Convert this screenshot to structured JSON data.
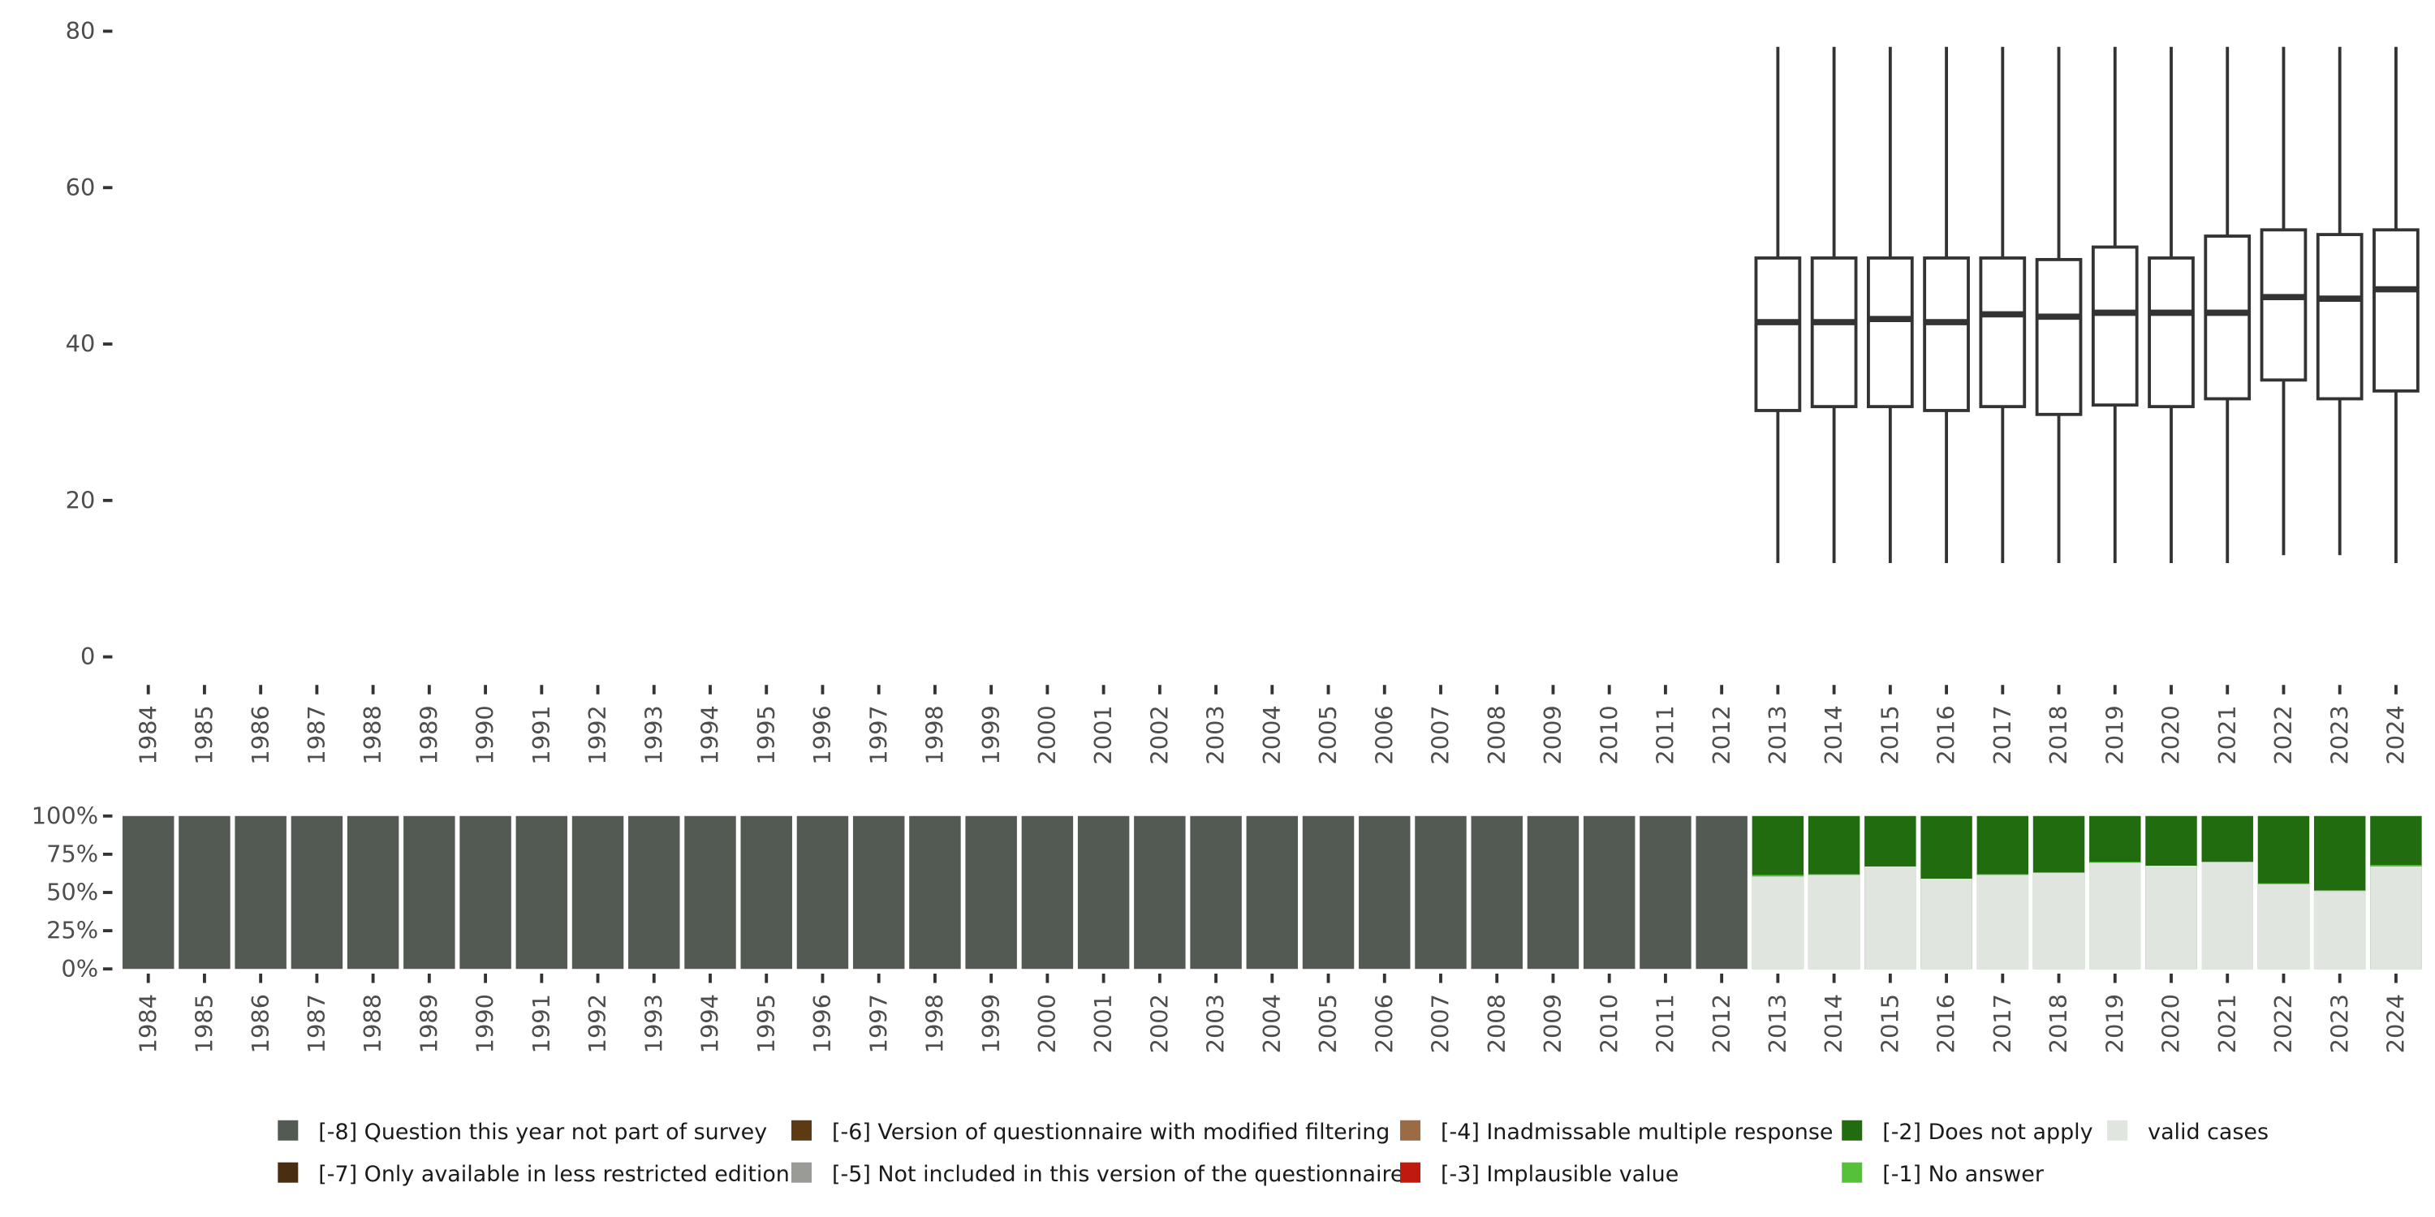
{
  "chart_data": [
    {
      "type": "boxplot",
      "categories": [
        "1984",
        "1985",
        "1986",
        "1987",
        "1988",
        "1989",
        "1990",
        "1991",
        "1992",
        "1993",
        "1994",
        "1995",
        "1996",
        "1997",
        "1998",
        "1999",
        "2000",
        "2001",
        "2002",
        "2003",
        "2004",
        "2005",
        "2006",
        "2007",
        "2008",
        "2009",
        "2010",
        "2011",
        "2012",
        "2013",
        "2014",
        "2015",
        "2016",
        "2017",
        "2018",
        "2019",
        "2020",
        "2021",
        "2022",
        "2023",
        "2024"
      ],
      "ylim": [
        0,
        80
      ],
      "yticks": [
        "0",
        "20",
        "40",
        "60",
        "80"
      ],
      "boxes": [
        {
          "year": "2013",
          "min": 12,
          "q1": 31.5,
          "median": 42.8,
          "q3": 51,
          "max": 78
        },
        {
          "year": "2014",
          "min": 12,
          "q1": 32,
          "median": 42.8,
          "q3": 51,
          "max": 78
        },
        {
          "year": "2015",
          "min": 12,
          "q1": 32,
          "median": 43.2,
          "q3": 51,
          "max": 78
        },
        {
          "year": "2016",
          "min": 12,
          "q1": 31.5,
          "median": 42.8,
          "q3": 51,
          "max": 78
        },
        {
          "year": "2017",
          "min": 12,
          "q1": 32,
          "median": 43.8,
          "q3": 51,
          "max": 78
        },
        {
          "year": "2018",
          "min": 12,
          "q1": 31,
          "median": 43.5,
          "q3": 50.8,
          "max": 78
        },
        {
          "year": "2019",
          "min": 12,
          "q1": 32.2,
          "median": 44,
          "q3": 52.4,
          "max": 78
        },
        {
          "year": "2020",
          "min": 12,
          "q1": 32,
          "median": 44,
          "q3": 51,
          "max": 78
        },
        {
          "year": "2021",
          "min": 12,
          "q1": 33,
          "median": 44,
          "q3": 53.8,
          "max": 78
        },
        {
          "year": "2022",
          "min": 13,
          "q1": 35.4,
          "median": 46,
          "q3": 54.6,
          "max": 78
        },
        {
          "year": "2023",
          "min": 13,
          "q1": 33,
          "median": 45.8,
          "q3": 54,
          "max": 78
        },
        {
          "year": "2024",
          "min": 12,
          "q1": 34,
          "median": 47,
          "q3": 54.6,
          "max": 78
        }
      ]
    },
    {
      "type": "stacked_bar",
      "categories": [
        "1984",
        "1985",
        "1986",
        "1987",
        "1988",
        "1989",
        "1990",
        "1991",
        "1992",
        "1993",
        "1994",
        "1995",
        "1996",
        "1997",
        "1998",
        "1999",
        "2000",
        "2001",
        "2002",
        "2003",
        "2004",
        "2005",
        "2006",
        "2007",
        "2008",
        "2009",
        "2010",
        "2011",
        "2012",
        "2013",
        "2014",
        "2015",
        "2016",
        "2017",
        "2018",
        "2019",
        "2020",
        "2021",
        "2022",
        "2023",
        "2024"
      ],
      "yticks": [
        "0%",
        "25%",
        "50%",
        "75%",
        "100%"
      ],
      "not_in_survey_years": 29,
      "valid_share": [
        0.605,
        0.615,
        0.67,
        0.59,
        0.615,
        0.63,
        0.695,
        0.675,
        0.7,
        0.555,
        0.51,
        0.67
      ],
      "no_answer_share": [
        0.01,
        0.005,
        0,
        0,
        0.005,
        0,
        0.005,
        0,
        0,
        0.005,
        0.005,
        0.01
      ]
    }
  ],
  "legend": [
    {
      "label": "[-8] Question this year not part of survey",
      "color": "#535a53"
    },
    {
      "label": "[-7] Only available in less restricted edition",
      "color": "#4a2e12"
    },
    {
      "label": "[-6] Version of questionnaire with modified filtering",
      "color": "#5c3a14"
    },
    {
      "label": "[-5] Not included in this version of the questionnaire",
      "color": "#9a9a96"
    },
    {
      "label": "[-4] Inadmissable multiple response",
      "color": "#9a6b44"
    },
    {
      "label": "[-3] Implausible value",
      "color": "#c0190f"
    },
    {
      "label": "[-2] Does not apply",
      "color": "#216c0f"
    },
    {
      "label": "[-1] No answer",
      "color": "#55c13b"
    },
    {
      "label": "valid cases",
      "color": "#e0e5e0"
    }
  ]
}
